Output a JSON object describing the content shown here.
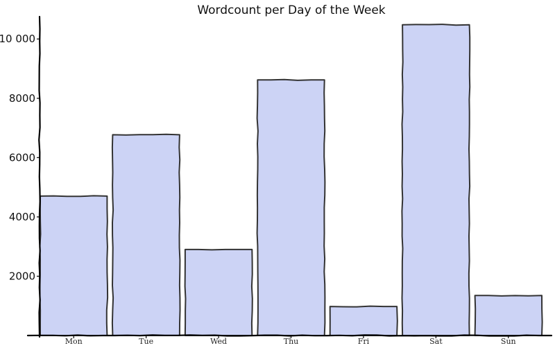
{
  "chart_data": {
    "type": "bar",
    "title": "Wordcount per Day of the Week",
    "xlabel": "",
    "ylabel": "",
    "categories": [
      "Mon",
      "Tue",
      "Wed",
      "Thu",
      "Fri",
      "Sat",
      "Sun"
    ],
    "values": [
      4700,
      6770,
      2900,
      8620,
      980,
      10480,
      1350
    ],
    "ylim": [
      0,
      10800
    ],
    "yticks": [
      2000,
      4000,
      6000,
      8000,
      10000
    ],
    "ytick_labels": [
      "2000",
      "4000",
      "6000",
      "8000",
      "10 000"
    ],
    "grid": false,
    "legend": "none",
    "colors": {
      "bar_fill": "#ccd3f5",
      "bar_stroke": "#333333",
      "axis": "#000000"
    }
  }
}
